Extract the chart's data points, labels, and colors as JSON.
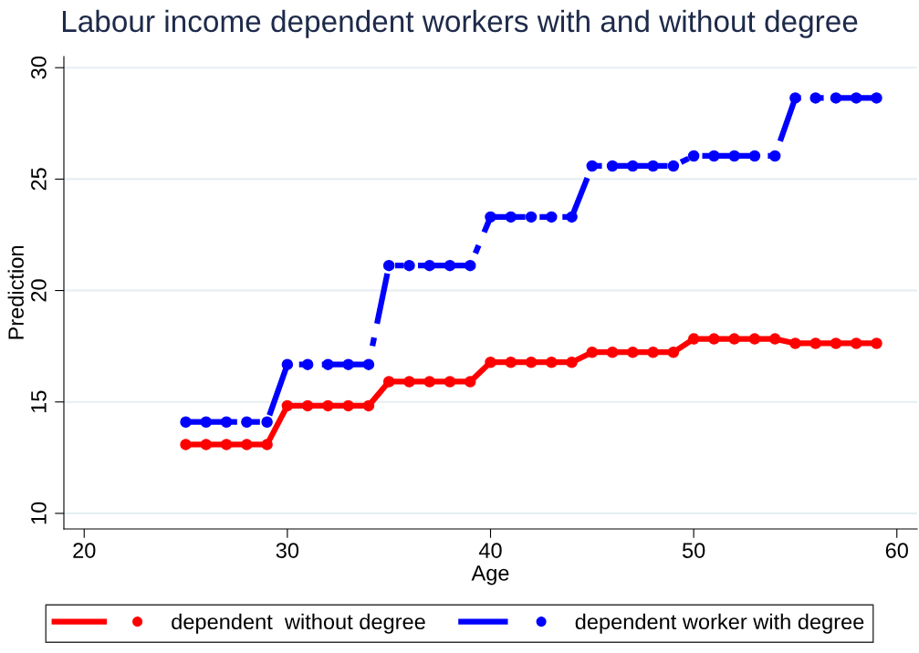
{
  "chart_data": {
    "type": "line",
    "title": "Labour income dependent workers with and without degree",
    "xlabel": "Age",
    "ylabel": "Prediction",
    "x": [
      25,
      26,
      27,
      28,
      29,
      30,
      31,
      32,
      33,
      34,
      35,
      36,
      37,
      38,
      39,
      40,
      41,
      42,
      43,
      44,
      45,
      46,
      47,
      48,
      49,
      50,
      51,
      52,
      53,
      54,
      55,
      56,
      57,
      58,
      59
    ],
    "series": [
      {
        "name": "dependent  without degree",
        "color": "#ff0000",
        "line_style": "solid",
        "values": [
          13.09,
          13.09,
          13.09,
          13.09,
          13.09,
          14.83,
          14.83,
          14.83,
          14.83,
          14.83,
          15.91,
          15.91,
          15.91,
          15.91,
          15.91,
          16.78,
          16.78,
          16.78,
          16.78,
          16.78,
          17.23,
          17.23,
          17.23,
          17.23,
          17.23,
          17.83,
          17.83,
          17.83,
          17.83,
          17.83,
          17.63,
          17.63,
          17.63,
          17.63,
          17.63
        ]
      },
      {
        "name": "dependent worker with degree",
        "color": "#0000ff",
        "line_style": "dashed",
        "values": [
          14.1,
          14.1,
          14.1,
          14.1,
          14.1,
          16.68,
          16.68,
          16.68,
          16.68,
          16.68,
          21.12,
          21.12,
          21.12,
          21.12,
          21.12,
          23.3,
          23.3,
          23.3,
          23.3,
          23.3,
          25.59,
          25.59,
          25.59,
          25.59,
          25.59,
          26.04,
          26.04,
          26.04,
          26.04,
          26.04,
          28.64,
          28.64,
          28.64,
          28.64,
          28.64
        ]
      }
    ],
    "xlim": [
      19,
      61
    ],
    "xticks": [
      20,
      30,
      40,
      50,
      60
    ],
    "ylim": [
      9.3,
      30.5
    ],
    "yticks": [
      10,
      15,
      20,
      25,
      30
    ],
    "grid": "y",
    "legend": "bottom",
    "marker": "circle"
  }
}
